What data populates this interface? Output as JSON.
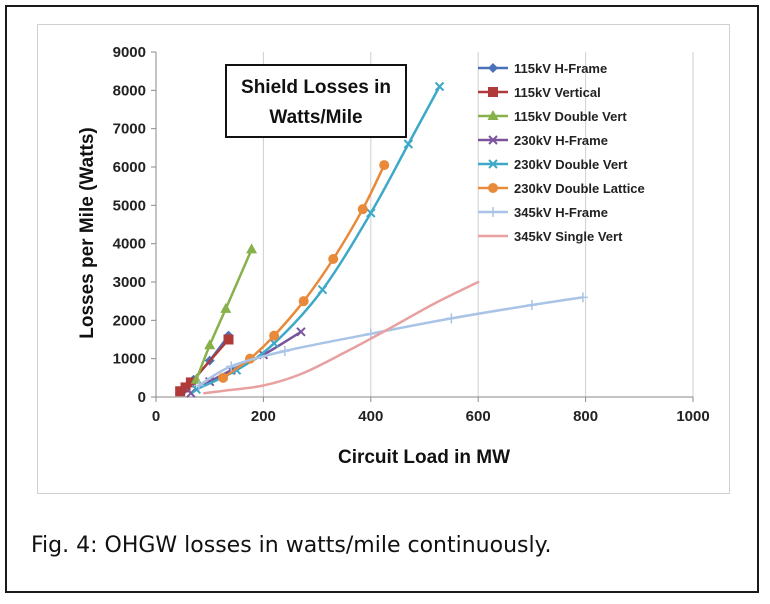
{
  "caption": "Fig. 4: OHGW losses in watts/mile continuously.",
  "chart_data": {
    "type": "line",
    "title_lines": [
      "Shield Losses in",
      "Watts/Mile"
    ],
    "xlabel": "Circuit Load in MW",
    "ylabel": "Losses per Mile (Watts)",
    "xlim": [
      0,
      1000
    ],
    "ylim": [
      0,
      9000
    ],
    "xticks": [
      0,
      200,
      400,
      600,
      800,
      1000
    ],
    "yticks": [
      0,
      1000,
      2000,
      3000,
      4000,
      5000,
      6000,
      7000,
      8000,
      9000
    ],
    "grid": "vertical",
    "legend_position": "top-right",
    "series": [
      {
        "name": "115kV H-Frame",
        "color": "#4a72b8",
        "marker": "diamond",
        "x": [
          50,
          70,
          100,
          135
        ],
        "y": [
          150,
          450,
          950,
          1600
        ]
      },
      {
        "name": "115kV Vertical",
        "color": "#b03a3a",
        "marker": "square",
        "x": [
          45,
          55,
          65,
          135
        ],
        "y": [
          150,
          250,
          380,
          1500
        ]
      },
      {
        "name": "115kV Double Vert",
        "color": "#88b04b",
        "marker": "triangle",
        "x": [
          75,
          100,
          130,
          178
        ],
        "y": [
          450,
          1350,
          2300,
          3850
        ]
      },
      {
        "name": "230kV H-Frame",
        "color": "#7a559e",
        "marker": "x",
        "x": [
          65,
          100,
          140,
          200,
          270
        ],
        "y": [
          100,
          400,
          700,
          1100,
          1700
        ]
      },
      {
        "name": "230kV Double Vert",
        "color": "#3da8c8",
        "marker": "x",
        "x": [
          75,
          150,
          220,
          310,
          400,
          470,
          528
        ],
        "y": [
          200,
          700,
          1400,
          2800,
          4800,
          6600,
          8100
        ]
      },
      {
        "name": "230kV Double Lattice",
        "color": "#e88a3a",
        "marker": "circle",
        "x": [
          125,
          175,
          220,
          275,
          330,
          385,
          425
        ],
        "y": [
          500,
          1000,
          1600,
          2500,
          3600,
          4900,
          6050
        ]
      },
      {
        "name": "345kV H-Frame",
        "color": "#a9c4e6",
        "marker": "plus",
        "x": [
          80,
          140,
          240,
          400,
          550,
          700,
          795
        ],
        "y": [
          300,
          800,
          1200,
          1650,
          2050,
          2400,
          2600
        ]
      },
      {
        "name": "345kV Single Vert",
        "color": "#e8a0a0",
        "marker": "none",
        "x": [
          90,
          130,
          200,
          270,
          350,
          430,
          520,
          600
        ],
        "y": [
          100,
          170,
          300,
          600,
          1150,
          1750,
          2450,
          3000
        ]
      }
    ]
  }
}
